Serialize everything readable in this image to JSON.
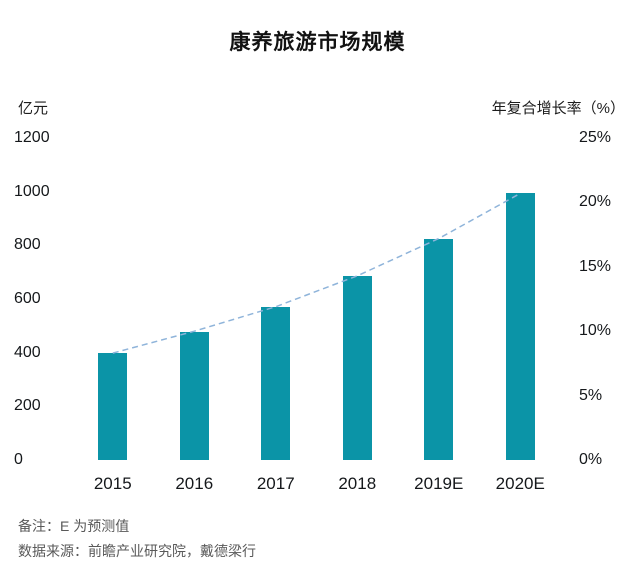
{
  "title": "康养旅游市场规模",
  "left_axis": {
    "label": "亿元",
    "ticks": [
      "1200",
      "1000",
      "800",
      "600",
      "400",
      "200",
      "0"
    ]
  },
  "right_axis": {
    "label": "年复合增长率（%）",
    "ticks": [
      "25%",
      "20%",
      "15%",
      "10%",
      "5%",
      "0%"
    ]
  },
  "footer": {
    "note": "备注：E 为预测值",
    "source": "数据来源：前瞻产业研究院，戴德梁行"
  },
  "colors": {
    "bar": "#0b94a7",
    "line": "#8fb4da"
  },
  "chart_data": {
    "type": "bar",
    "title": "康养旅游市场规模",
    "categories": [
      "2015",
      "2016",
      "2017",
      "2018",
      "2019E",
      "2020E"
    ],
    "series": [
      {
        "name": "市场规模（亿元）",
        "type": "bar",
        "axis": "left",
        "values": [
          400,
          478,
          572,
          686,
          824,
          995
        ]
      },
      {
        "name": "年复合增长率（%）",
        "type": "line",
        "axis": "right",
        "values": [
          8.3,
          10.0,
          11.9,
          14.3,
          17.2,
          20.7
        ]
      }
    ],
    "left_ylabel": "亿元",
    "right_ylabel": "年复合增长率（%）",
    "left_ylim": [
      0,
      1200
    ],
    "right_ylim": [
      0,
      25
    ],
    "grid": false,
    "legend": "none",
    "line_style": "dashed"
  }
}
